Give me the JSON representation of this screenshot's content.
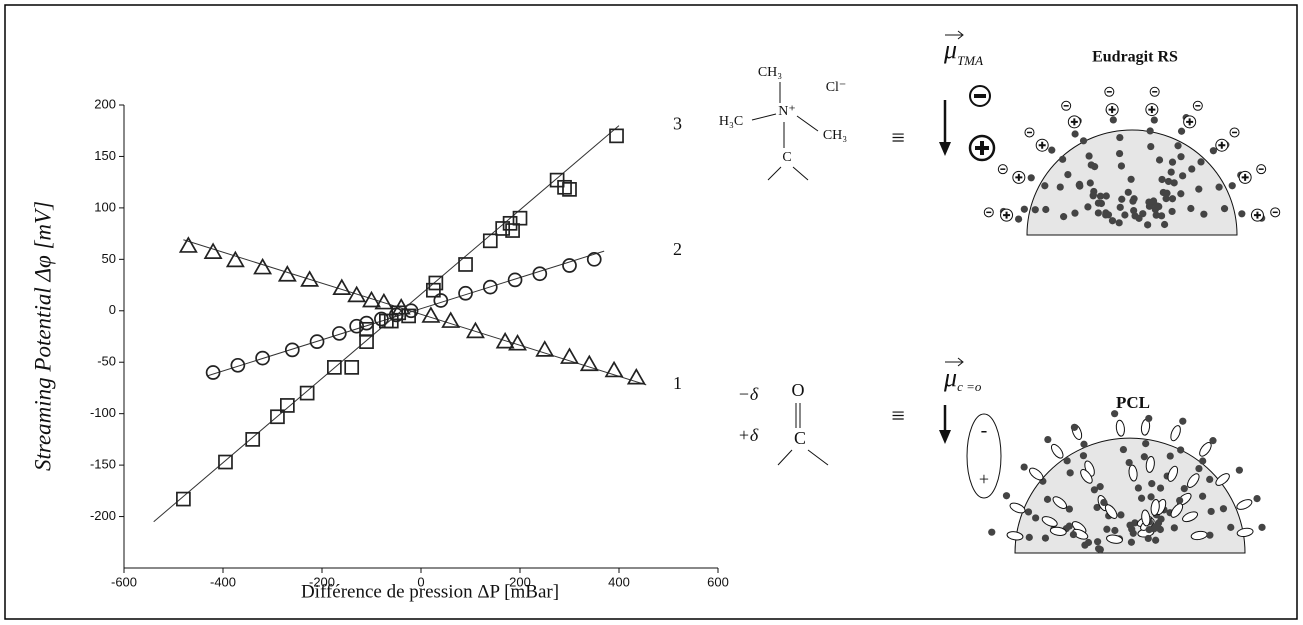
{
  "chart_data": {
    "type": "scatter",
    "x_label": "Différence de pression ΔP [mBar]",
    "y_label": "Streaming Potential Δφ [mV]",
    "xlim": [
      -600,
      600
    ],
    "xticks": [
      -600,
      -400,
      -200,
      0,
      200,
      400,
      600
    ],
    "ylim": [
      -250,
      200
    ],
    "yticks": [
      -200,
      -150,
      -100,
      -50,
      0,
      50,
      100,
      150,
      200
    ],
    "series": [
      {
        "name": "1",
        "marker": "triangle",
        "color": "#222222",
        "x": [
          -470,
          -420,
          -375,
          -320,
          -270,
          -225,
          -160,
          -130,
          -100,
          -75,
          -40,
          20,
          60,
          110,
          170,
          195,
          250,
          300,
          340,
          390,
          435
        ],
        "values": [
          63,
          57,
          49,
          42,
          35,
          30,
          22,
          15,
          10,
          8,
          3,
          -5,
          -10,
          -20,
          -30,
          -32,
          -38,
          -45,
          -52,
          -58,
          -65
        ],
        "fit": {
          "x": [
            -480,
            455
          ],
          "values": [
            69,
            -72
          ]
        }
      },
      {
        "name": "2",
        "marker": "circle",
        "color": "#222222",
        "x": [
          -420,
          -370,
          -320,
          -260,
          -210,
          -165,
          -130,
          -110,
          -80,
          -50,
          -20,
          40,
          90,
          140,
          190,
          240,
          300,
          350
        ],
        "values": [
          -60,
          -53,
          -46,
          -38,
          -30,
          -22,
          -15,
          -12,
          -8,
          -4,
          0,
          10,
          17,
          23,
          30,
          36,
          44,
          50
        ],
        "fit": {
          "x": [
            -430,
            370
          ],
          "values": [
            -63,
            58
          ]
        }
      },
      {
        "name": "3",
        "marker": "square",
        "color": "#222222",
        "x": [
          -480,
          -395,
          -340,
          -290,
          -270,
          -230,
          -175,
          -140,
          -110,
          -110,
          -70,
          -60,
          -45,
          -25,
          25,
          30,
          90,
          140,
          165,
          180,
          185,
          200,
          275,
          290,
          300,
          395
        ],
        "values": [
          -183,
          -147,
          -125,
          -103,
          -92,
          -80,
          -55,
          -55,
          -30,
          -18,
          -10,
          -10,
          -2,
          -5,
          20,
          27,
          45,
          68,
          80,
          85,
          78,
          90,
          127,
          120,
          118,
          170
        ],
        "fit": {
          "x": [
            -540,
            400
          ],
          "values": [
            -205,
            180
          ]
        }
      }
    ]
  },
  "diagram": {
    "tma": {
      "ch3_top": "CH₃",
      "cl": "Cl⁻",
      "n": "N⁺",
      "h3c": "H₃C",
      "ch3_right": "CH₃",
      "c": "C"
    },
    "carbonyl": {
      "minus_delta": "−δ",
      "o": "O",
      "plus_delta": "+δ",
      "c": "C"
    },
    "equiv": [
      "≡",
      "≡"
    ],
    "mu_tma": {
      "symbol": "μ",
      "sub": "TMA"
    },
    "mu_co": {
      "symbol": "μ",
      "sub": "c =o"
    },
    "dipole": {
      "minus": "-",
      "plus": "+"
    },
    "eudragit": "Eudragit RS",
    "pcl": "PCL"
  }
}
